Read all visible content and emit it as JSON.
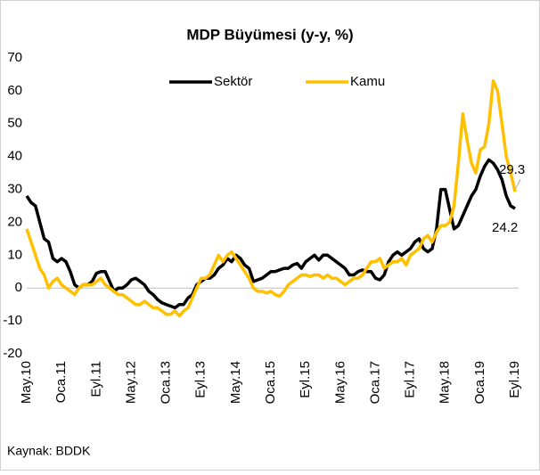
{
  "chart_data": {
    "type": "line",
    "title": "MDP Büyümesi (y-y, %)",
    "source": "Kaynak: BDDK",
    "categories": [
      "May.10",
      null,
      null,
      null,
      null,
      null,
      null,
      null,
      "Oca.11",
      null,
      null,
      null,
      null,
      null,
      null,
      null,
      "Eyl.11",
      null,
      null,
      null,
      null,
      null,
      null,
      null,
      "May.12",
      null,
      null,
      null,
      null,
      null,
      null,
      null,
      "Oca.13",
      null,
      null,
      null,
      null,
      null,
      null,
      null,
      "Eyl.13",
      null,
      null,
      null,
      null,
      null,
      null,
      null,
      "May.14",
      null,
      null,
      null,
      null,
      null,
      null,
      null,
      "Oca.15",
      null,
      null,
      null,
      null,
      null,
      null,
      null,
      "Eyl.15",
      null,
      null,
      null,
      null,
      null,
      null,
      null,
      "May.16",
      null,
      null,
      null,
      null,
      null,
      null,
      null,
      "Oca.17",
      null,
      null,
      null,
      null,
      null,
      null,
      null,
      "Eyl.17",
      null,
      null,
      null,
      null,
      null,
      null,
      null,
      "May.18",
      null,
      null,
      null,
      null,
      null,
      null,
      null,
      "Oca.19",
      null,
      null,
      null,
      null,
      null,
      null,
      null,
      "Eyl.19"
    ],
    "series": [
      {
        "name": "Sektör",
        "color": "#000000",
        "values": [
          28,
          26,
          25,
          20,
          15,
          14,
          9,
          8,
          9,
          8,
          5,
          1,
          0,
          1,
          1,
          2,
          4.5,
          5,
          5,
          2,
          -1,
          0,
          0,
          1,
          2.5,
          3,
          2,
          1,
          -1,
          -2,
          -3.5,
          -4.5,
          -5,
          -5.5,
          -6,
          -5,
          -5,
          -3,
          -2,
          1,
          2,
          3,
          3,
          4,
          6,
          7,
          9,
          8,
          10,
          9,
          7,
          6,
          2,
          2.5,
          3,
          4,
          5,
          5,
          5.5,
          6,
          6,
          7,
          7.5,
          6,
          8,
          9,
          10,
          8.5,
          10,
          10,
          9,
          8,
          7,
          6,
          4,
          4,
          5,
          5.5,
          5,
          5,
          3,
          2.5,
          4,
          8,
          10,
          11,
          10,
          11,
          12,
          14,
          15,
          12,
          11,
          12,
          18,
          30,
          30,
          24,
          18,
          19,
          22,
          25,
          28,
          30,
          34,
          37,
          39,
          38,
          36,
          33,
          28,
          25,
          24.2
        ]
      },
      {
        "name": "Kamu",
        "color": "#ffc000",
        "values": [
          18,
          14,
          10,
          6,
          4,
          0,
          2,
          3,
          1,
          0,
          -1,
          -2,
          0,
          1,
          1,
          1,
          2,
          3,
          1,
          0,
          -1,
          -2,
          -2,
          -3,
          -4,
          -5,
          -5,
          -4,
          -5,
          -6,
          -6,
          -7,
          -8,
          -8,
          -7,
          -8.5,
          -7,
          -6,
          -3,
          0,
          3,
          3,
          4,
          7,
          10,
          8,
          10,
          11,
          9,
          7,
          5,
          3,
          0,
          -1,
          -1,
          -1.5,
          -1,
          -2,
          -2.5,
          -1,
          1,
          2,
          3,
          4,
          4,
          3.5,
          4,
          4,
          3,
          4,
          3,
          3,
          2,
          1,
          2,
          3,
          3,
          4,
          6,
          8,
          8,
          9,
          6,
          7,
          8,
          8,
          9,
          7,
          10,
          11,
          12,
          15,
          16,
          14,
          17,
          19,
          19,
          20,
          25,
          38,
          53,
          45,
          38,
          35,
          42,
          43,
          50,
          63,
          60,
          50,
          40,
          35,
          29.3
        ]
      }
    ],
    "ylim": [
      -20,
      70
    ],
    "yticks": [
      -20,
      -10,
      0,
      10,
      20,
      30,
      40,
      50,
      60,
      70
    ],
    "grid": false,
    "legend": "top"
  }
}
